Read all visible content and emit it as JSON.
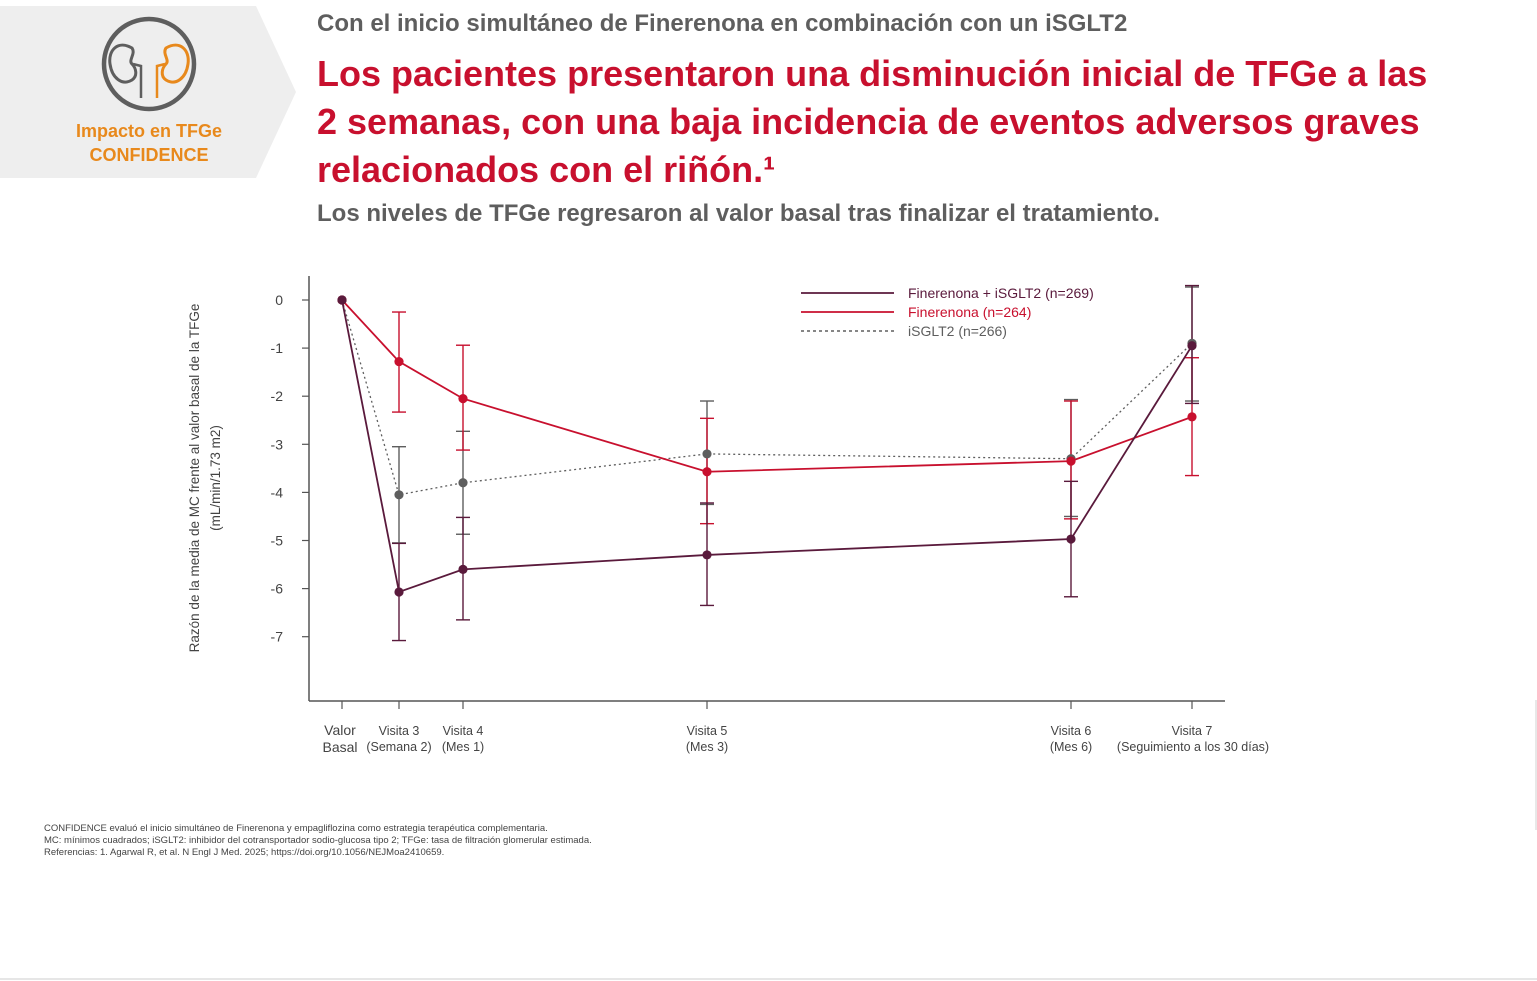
{
  "badge": {
    "line1": "Impacto en TFGe",
    "line2": "CONFIDENCE",
    "icon": "kidney-icon",
    "colors": {
      "panel": "#eeeeee",
      "ring": "#5e5e5e",
      "accent": "#e8891c"
    }
  },
  "header": {
    "kicker": "Con el inicio simultáneo de Finerenona en combinación con un iSGLT2",
    "headline": "Los pacientes presentaron una disminución inicial de TFGe a las 2 semanas, con una baja incidencia de eventos adversos graves relacionados con el riñón.¹",
    "subhead": "Los niveles de TFGe regresaron al valor basal tras finalizar el tratamiento."
  },
  "chart_data": {
    "type": "line",
    "ylabel_line1": "Razón de la media de MC frente al valor basal de la TFGe",
    "ylabel_line2": "(mL/min/1.73 m2)",
    "yticks": [
      "0",
      "-1",
      "-2",
      "-3",
      "-4",
      "-5",
      "-6",
      "-7"
    ],
    "ylim": [
      -8.35,
      0.5
    ],
    "x_order": [
      0,
      1,
      2,
      3,
      4,
      5
    ],
    "categories": [
      {
        "line1": "Valor",
        "line2": "Basal"
      },
      {
        "line1": "Visita 3",
        "line2": "(Semana 2)"
      },
      {
        "line1": "Visita 4",
        "line2": "(Mes 1)"
      },
      {
        "line1": "Visita 5",
        "line2": "(Mes 3)"
      },
      {
        "line1": "Visita 6",
        "line2": "(Mes 6)"
      },
      {
        "line1": "Visita 7",
        "line2": "(Seguimiento a los 30 días)"
      }
    ],
    "legend_position": "top-right",
    "grid": false,
    "series": [
      {
        "name": "Finerenona + iSGLT2 (n=269)",
        "color": "#5a1a3c",
        "style": "solid",
        "values": [
          0,
          -6.07,
          -5.6,
          -5.3,
          -4.97,
          -0.95
        ],
        "errors": [
          [
            0,
            0
          ],
          [
            -7.08,
            -5.06
          ],
          [
            -6.65,
            -4.52
          ],
          [
            -6.35,
            -4.22
          ],
          [
            -6.17,
            -3.77
          ],
          [
            -2.15,
            0.3
          ]
        ]
      },
      {
        "name": "Finerenona (n=264)",
        "color": "#c8102e",
        "style": "solid",
        "values": [
          0,
          -1.28,
          -2.05,
          -3.57,
          -3.35,
          -2.43
        ],
        "errors": [
          [
            0,
            0
          ],
          [
            -2.33,
            -0.25
          ],
          [
            -3.12,
            -0.94
          ],
          [
            -4.65,
            -2.46
          ],
          [
            -4.55,
            -2.1
          ],
          [
            -3.65,
            -1.2
          ]
        ]
      },
      {
        "name": "iSGLT2 (n=266)",
        "color": "#5e5e5e",
        "style": "dotted",
        "values": [
          0,
          -4.05,
          -3.8,
          -3.2,
          -3.3,
          -0.9
        ],
        "errors": [
          [
            0,
            0
          ],
          [
            -5.05,
            -3.05
          ],
          [
            -4.87,
            -2.73
          ],
          [
            -4.25,
            -2.1
          ],
          [
            -4.5,
            -2.07
          ],
          [
            -2.1,
            0.27
          ]
        ]
      }
    ]
  },
  "footnotes": {
    "line1": "CONFIDENCE evaluó el inicio simultáneo de Finerenona y empagliflozina como estrategia terapéutica complementaria.",
    "line2": "MC: mínimos cuadrados; iSGLT2: inhibidor del cotransportador sodio-glucosa tipo 2; TFGe: tasa de filtración glomerular estimada.",
    "line3": "Referencias: 1. Agarwal R, et al. N Engl J Med. 2025; https://doi.org/10.1056/NEJMoa2410659."
  }
}
